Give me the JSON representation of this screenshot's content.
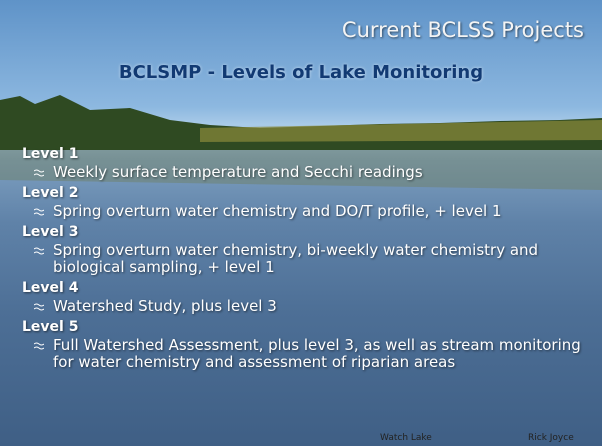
{
  "header": {
    "title": "Current BCLSS Projects",
    "subtitle": "BCLSMP - Levels of Lake Monitoring"
  },
  "levels": [
    {
      "label": "Level 1",
      "items": [
        "Weekly surface temperature and Secchi readings"
      ]
    },
    {
      "label": "Level 2",
      "items": [
        "Spring overturn water chemistry and DO/T profile, + level 1"
      ]
    },
    {
      "label": "Level 3",
      "items": [
        "Spring overturn water chemistry, bi-weekly water chemistry and biological sampling, + level 1"
      ]
    },
    {
      "label": "Level 4",
      "items": [
        "Watershed Study, plus level 3"
      ]
    },
    {
      "label": "Level 5",
      "items": [
        "Full Watershed Assessment, plus level 3, as well as stream monitoring for water chemistry and assessment of riparian areas"
      ]
    }
  ],
  "footer": {
    "location": "Watch Lake",
    "author": "Rick Joyce"
  }
}
